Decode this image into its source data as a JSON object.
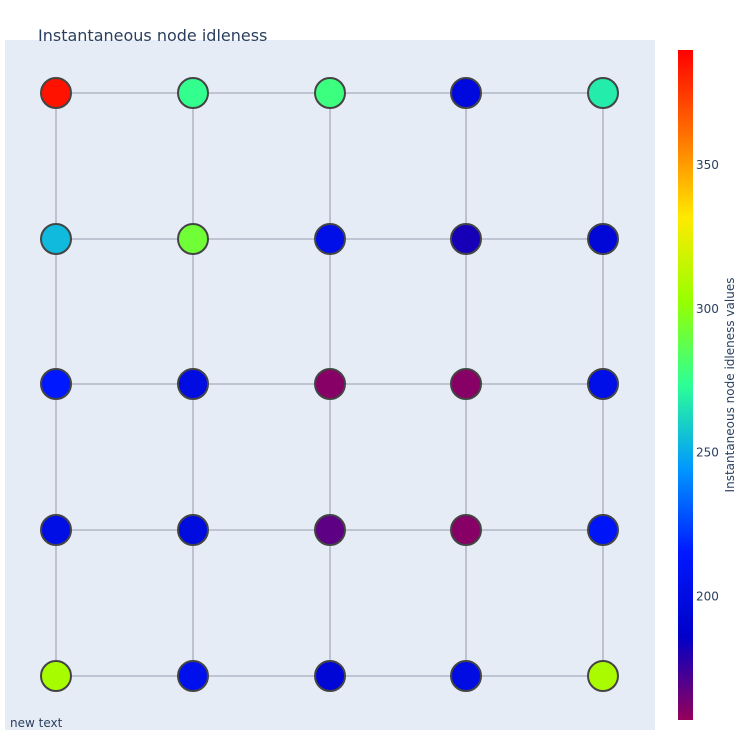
{
  "chart_data": {
    "type": "scatter",
    "title": "Instantaneous node idleness",
    "grid_rows": 5,
    "grid_cols": 5,
    "nodes": [
      {
        "row": 0,
        "col": 0,
        "value": 385
      },
      {
        "row": 0,
        "col": 1,
        "value": 275
      },
      {
        "row": 0,
        "col": 2,
        "value": 278
      },
      {
        "row": 0,
        "col": 3,
        "value": 197
      },
      {
        "row": 0,
        "col": 4,
        "value": 268
      },
      {
        "row": 1,
        "col": 0,
        "value": 254
      },
      {
        "row": 1,
        "col": 1,
        "value": 292
      },
      {
        "row": 1,
        "col": 2,
        "value": 203
      },
      {
        "row": 1,
        "col": 3,
        "value": 182
      },
      {
        "row": 1,
        "col": 4,
        "value": 194
      },
      {
        "row": 2,
        "col": 0,
        "value": 214
      },
      {
        "row": 2,
        "col": 1,
        "value": 200
      },
      {
        "row": 2,
        "col": 2,
        "value": 160
      },
      {
        "row": 2,
        "col": 3,
        "value": 160
      },
      {
        "row": 2,
        "col": 4,
        "value": 203
      },
      {
        "row": 3,
        "col": 0,
        "value": 202
      },
      {
        "row": 3,
        "col": 1,
        "value": 199
      },
      {
        "row": 3,
        "col": 2,
        "value": 168
      },
      {
        "row": 3,
        "col": 3,
        "value": 160
      },
      {
        "row": 3,
        "col": 4,
        "value": 211
      },
      {
        "row": 4,
        "col": 0,
        "value": 307
      },
      {
        "row": 4,
        "col": 1,
        "value": 205
      },
      {
        "row": 4,
        "col": 2,
        "value": 193
      },
      {
        "row": 4,
        "col": 3,
        "value": 200
      },
      {
        "row": 4,
        "col": 4,
        "value": 308
      }
    ],
    "colorbar": {
      "title": "Instantaneous node idleness values",
      "colorscale": "Rainbow",
      "min": 157,
      "max": 390,
      "ticks": [
        200,
        250,
        300,
        350
      ]
    },
    "marker_line_color": "#444444",
    "edge_color": "#a8acbc",
    "plot_bg": "#e5ecf6",
    "annotation": "new text"
  }
}
